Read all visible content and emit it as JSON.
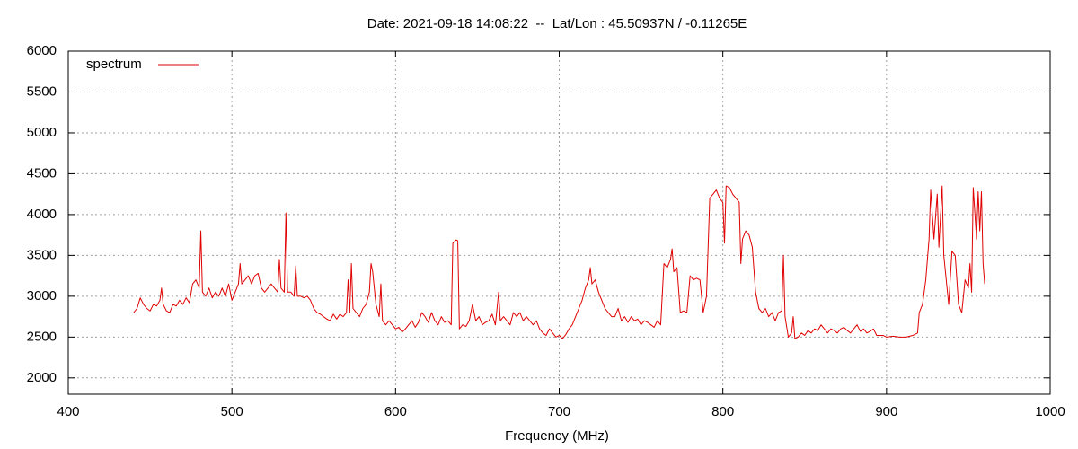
{
  "chart_data": {
    "type": "line",
    "title": "Date: 2021-09-18 14:08:22  --  Lat/Lon : 45.50937N / -0.11265E",
    "x_label": "Frequency (MHz)",
    "xlim": [
      400,
      1000
    ],
    "xticks": [
      400,
      500,
      600,
      700,
      800,
      900,
      1000
    ],
    "ylim": [
      1800,
      6000
    ],
    "yticks": [
      2000,
      2500,
      3000,
      3500,
      4000,
      4500,
      5000,
      5500,
      6000
    ],
    "grid": true,
    "legend": "top-left",
    "x": [
      440,
      442,
      444,
      446,
      448,
      450,
      452,
      454,
      456,
      457,
      458,
      460,
      462,
      464,
      466,
      468,
      470,
      472,
      474,
      476,
      478,
      480,
      481,
      482,
      484,
      486,
      488,
      490,
      492,
      494,
      496,
      498,
      500,
      502,
      504,
      505,
      506,
      508,
      510,
      512,
      514,
      516,
      518,
      520,
      522,
      524,
      526,
      528,
      529,
      530,
      532,
      533,
      534,
      536,
      538,
      539,
      540,
      542,
      544,
      546,
      548,
      550,
      552,
      554,
      556,
      558,
      560,
      562,
      564,
      566,
      568,
      570,
      571,
      572,
      573,
      574,
      576,
      578,
      580,
      582,
      584,
      585,
      586,
      588,
      590,
      591,
      592,
      594,
      596,
      598,
      600,
      602,
      604,
      606,
      608,
      610,
      612,
      614,
      616,
      618,
      620,
      622,
      624,
      626,
      628,
      630,
      632,
      634,
      635,
      637,
      638,
      639,
      641,
      643,
      645,
      647,
      649,
      651,
      653,
      655,
      657,
      659,
      661,
      663,
      664,
      666,
      668,
      670,
      672,
      674,
      676,
      678,
      680,
      682,
      684,
      686,
      688,
      690,
      692,
      694,
      696,
      698,
      700,
      702,
      704,
      706,
      708,
      710,
      712,
      714,
      716,
      718,
      719,
      720,
      722,
      724,
      726,
      728,
      730,
      732,
      734,
      736,
      738,
      740,
      742,
      744,
      746,
      748,
      750,
      752,
      754,
      756,
      758,
      760,
      762,
      764,
      766,
      768,
      769,
      770,
      772,
      774,
      776,
      778,
      780,
      782,
      784,
      786,
      788,
      790,
      792,
      794,
      796,
      798,
      800,
      801,
      802,
      804,
      806,
      808,
      810,
      811,
      812,
      814,
      816,
      818,
      820,
      822,
      824,
      826,
      828,
      830,
      832,
      834,
      836,
      837,
      838,
      840,
      842,
      843,
      844,
      846,
      848,
      850,
      852,
      854,
      856,
      858,
      860,
      862,
      864,
      866,
      868,
      870,
      872,
      874,
      876,
      878,
      880,
      882,
      884,
      886,
      888,
      890,
      892,
      894,
      898,
      900,
      904,
      908,
      912,
      916,
      919,
      920,
      922,
      924,
      926,
      927,
      929,
      931,
      932,
      934,
      935,
      937,
      938,
      940,
      942,
      944,
      946,
      948,
      950,
      951,
      952,
      953,
      955,
      956,
      957,
      958,
      959,
      960
    ],
    "series": [
      {
        "name": "spectrum",
        "color": "#e00000",
        "values": [
          2800,
          2850,
          2980,
          2900,
          2850,
          2820,
          2900,
          2880,
          2950,
          3100,
          2900,
          2820,
          2800,
          2900,
          2880,
          2950,
          2900,
          2980,
          2920,
          3150,
          3200,
          3100,
          3800,
          3050,
          3000,
          3100,
          2980,
          3050,
          3000,
          3100,
          3000,
          3150,
          2950,
          3050,
          3150,
          3400,
          3150,
          3200,
          3250,
          3150,
          3250,
          3280,
          3100,
          3050,
          3100,
          3150,
          3100,
          3050,
          3450,
          3100,
          3050,
          4020,
          3050,
          3050,
          3000,
          3370,
          3000,
          3000,
          2980,
          3000,
          2950,
          2850,
          2800,
          2780,
          2750,
          2720,
          2700,
          2780,
          2720,
          2780,
          2750,
          2800,
          3200,
          2800,
          3400,
          2850,
          2800,
          2750,
          2850,
          2900,
          3050,
          3400,
          3300,
          2900,
          2750,
          3150,
          2700,
          2650,
          2700,
          2650,
          2600,
          2620,
          2560,
          2600,
          2650,
          2700,
          2620,
          2680,
          2800,
          2750,
          2680,
          2800,
          2700,
          2650,
          2750,
          2680,
          2700,
          2650,
          3650,
          3690,
          3680,
          2600,
          2650,
          2630,
          2700,
          2900,
          2700,
          2750,
          2650,
          2680,
          2700,
          2780,
          2650,
          3050,
          2700,
          2750,
          2700,
          2650,
          2800,
          2750,
          2800,
          2700,
          2750,
          2700,
          2650,
          2700,
          2600,
          2550,
          2520,
          2600,
          2550,
          2500,
          2520,
          2480,
          2530,
          2600,
          2650,
          2750,
          2850,
          2950,
          3100,
          3200,
          3350,
          3150,
          3200,
          3050,
          2950,
          2850,
          2800,
          2750,
          2750,
          2850,
          2700,
          2750,
          2680,
          2750,
          2700,
          2720,
          2650,
          2700,
          2680,
          2650,
          2620,
          2700,
          2650,
          3400,
          3350,
          3450,
          3580,
          3300,
          3350,
          2800,
          2820,
          2800,
          3250,
          3200,
          3220,
          3200,
          2800,
          3000,
          4200,
          4250,
          4300,
          4200,
          4150,
          3650,
          4350,
          4330,
          4250,
          4200,
          4150,
          3400,
          3700,
          3800,
          3750,
          3600,
          3050,
          2850,
          2800,
          2850,
          2750,
          2800,
          2700,
          2800,
          2820,
          3500,
          2750,
          2500,
          2550,
          2750,
          2480,
          2500,
          2550,
          2520,
          2580,
          2550,
          2600,
          2580,
          2650,
          2600,
          2550,
          2600,
          2580,
          2550,
          2600,
          2620,
          2580,
          2550,
          2600,
          2650,
          2570,
          2600,
          2550,
          2570,
          2600,
          2520,
          2520,
          2500,
          2510,
          2500,
          2500,
          2520,
          2550,
          2800,
          2900,
          3200,
          3700,
          4300,
          3700,
          4250,
          3600,
          4350,
          3500,
          3100,
          2900,
          3550,
          3500,
          2900,
          2800,
          3200,
          3100,
          3400,
          3050,
          4330,
          3700,
          4280,
          3800,
          4280,
          3400,
          3150
        ]
      }
    ]
  }
}
